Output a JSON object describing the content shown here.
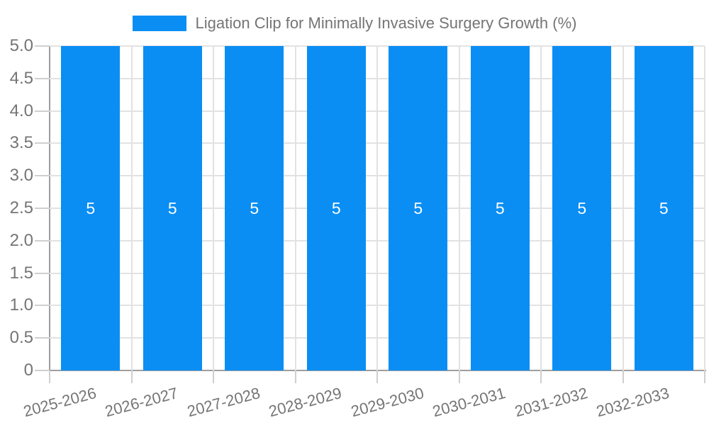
{
  "colors": {
    "background": "#ffffff",
    "bar": "#0a8ef4",
    "text": "#757575",
    "grid_line": "#e2e2e2",
    "axis_line": "#9e9e9e",
    "tick_line": "#cfcfcf",
    "bar_label": "#ffffff"
  },
  "legend": {
    "label": "Ligation Clip for Minimally Invasive Surgery Growth (%)"
  },
  "chart_data": {
    "type": "bar",
    "title": "Ligation Clip for Minimally Invasive Surgery Growth (%)",
    "categories": [
      "2025-2026",
      "2026-2027",
      "2027-2028",
      "2028-2029",
      "2029-2030",
      "2030-2031",
      "2031-2032",
      "2032-2033"
    ],
    "values": [
      5,
      5,
      5,
      5,
      5,
      5,
      5,
      5
    ],
    "bar_labels": [
      "5",
      "5",
      "5",
      "5",
      "5",
      "5",
      "5",
      "5"
    ],
    "xlabel": "",
    "ylabel": "",
    "ylim": [
      0,
      5
    ],
    "ytick_step": 0.5,
    "ytick_labels": [
      "0",
      "0.5",
      "1.0",
      "1.5",
      "2.0",
      "2.5",
      "3.0",
      "3.5",
      "4.0",
      "4.5",
      "5.0"
    ],
    "legend_position": "top-center",
    "grid": "horizontal-and-vertical",
    "x_label_rotation_deg": -15
  }
}
